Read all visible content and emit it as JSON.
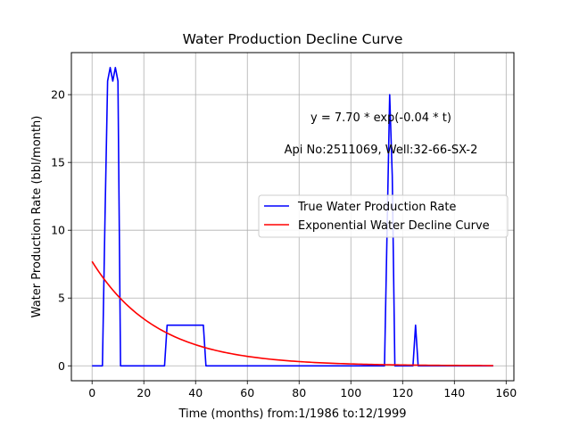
{
  "chart_data": {
    "type": "line",
    "title": "Water Production Decline Curve",
    "xlabel": "Time (months) from:1/1986 to:12/1999",
    "ylabel": "Water Production Rate (bbl/month)",
    "xlim": [
      -8,
      163
    ],
    "ylim": [
      -1.1,
      23.1
    ],
    "xticks": [
      0,
      20,
      40,
      60,
      80,
      100,
      120,
      140,
      160
    ],
    "yticks": [
      0,
      5,
      10,
      15,
      20
    ],
    "grid": true,
    "legend_position": "center-right",
    "annotations": [
      "y = 7.70 * exp(-0.04 * t)",
      "Api No:2511069, Well:32-66-SX-2"
    ],
    "series": [
      {
        "name": "True Water Production Rate",
        "color": "#0000ff",
        "x": [
          0,
          4,
          5,
          6,
          7,
          8,
          9,
          10,
          11,
          28,
          29,
          43,
          44,
          113,
          114,
          115,
          116,
          117,
          118,
          124,
          125,
          126,
          155
        ],
        "y": [
          0,
          0,
          11,
          21,
          22,
          21,
          22,
          21,
          0,
          0,
          3,
          3,
          0,
          0,
          10,
          20,
          14,
          0,
          0,
          0,
          3,
          0,
          0
        ]
      },
      {
        "name": "Exponential Water Decline Curve",
        "color": "#ff0000",
        "model": {
          "a": 7.7,
          "b": -0.04,
          "x_start": 0,
          "x_end": 155
        }
      }
    ]
  }
}
